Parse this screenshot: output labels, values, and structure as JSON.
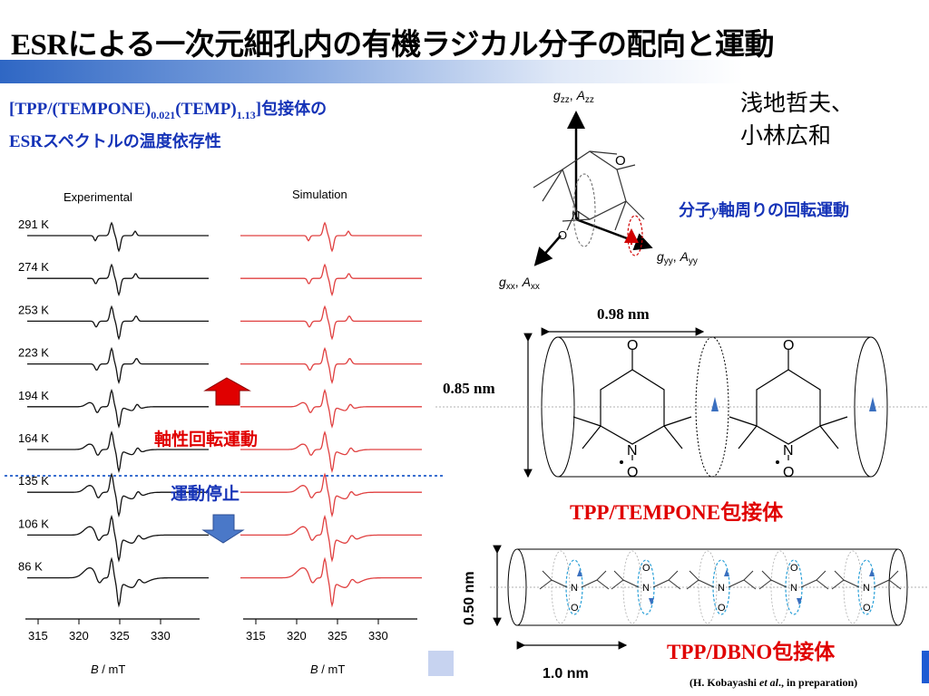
{
  "title": {
    "latin": "ESR",
    "rest": "による一次元細孔内の有機ラジカル分子の配向と運動"
  },
  "subtitle": {
    "line1_a": "[TPP/(TEMPONE)",
    "sub1": "0.021",
    "line1_b": "(TEMP)",
    "sub2": "1.13",
    "line1_c": "]",
    "line1_jp": "包接体の",
    "line2_latin": "ESR",
    "line2_jp": "スペクトルの温度依存性"
  },
  "authors": {
    "line1": "浅地哲夫、",
    "line2": "小林広和"
  },
  "spectra": {
    "experimental_label": "Experimental",
    "simulation_label": "Simulation",
    "temperatures": [
      "291 K",
      "274 K",
      "253 K",
      "223 K",
      "194 K",
      "164 K",
      "135 K",
      "106 K",
      "86 K"
    ],
    "ticks": [
      "315",
      "320",
      "325",
      "330"
    ],
    "axis_label_italic": "B",
    "axis_label_unit": " / mT"
  },
  "axial_rotation": "軸性回転運動",
  "motion_stop": "運動停止",
  "molecule": {
    "gzz": "g",
    "gzz_sub": "zz",
    "azz": "A",
    "azz_sub": "zz",
    "gyy": "g",
    "gyy_sub": "yy",
    "ayy": "A",
    "ayy_sub": "yy",
    "gxx": "g",
    "gxx_sub": "xx",
    "axx": "A",
    "axx_sub": "xx",
    "atom_o": "O",
    "atom_n": "N"
  },
  "rotation_label": {
    "pre": "分子",
    "axis": "y",
    "post": "軸周りの回転運動"
  },
  "tempone": {
    "width_label": "0.98 nm",
    "height_label": "0.85 nm",
    "caption_latin": "TPP/TEMPONE",
    "caption_jp": "包接体"
  },
  "dbno": {
    "height_label": "0.50 nm",
    "width_label": "1.0 nm",
    "caption_latin": "TPP/DBNO",
    "caption_jp": "包接体"
  },
  "reference": {
    "pre": "(H. Kobayashi ",
    "italic": "et al",
    "post": "., in preparation)"
  },
  "colors": {
    "accent_blue": "#1533b7",
    "accent_red": "#e00000",
    "sim_red": "#e04040",
    "arrow_blue": "#4a78c8"
  }
}
